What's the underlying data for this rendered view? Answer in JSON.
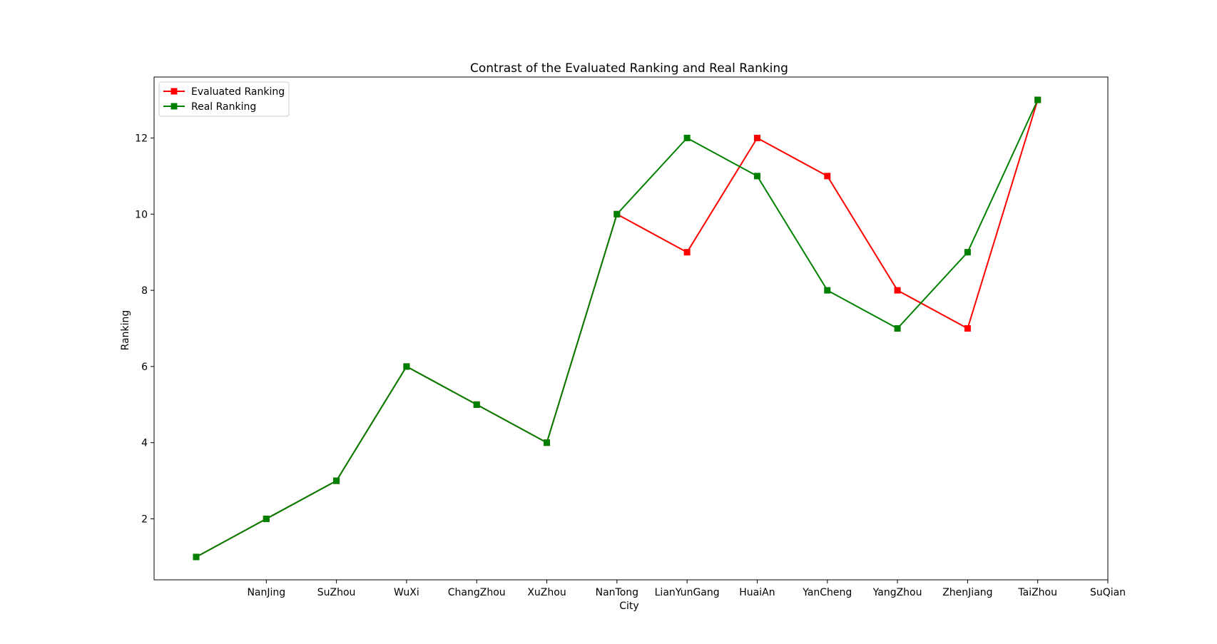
{
  "chart_data": {
    "type": "line",
    "title": "Contrast of the Evaluated Ranking and Real Ranking",
    "xlabel": "City",
    "ylabel": "Ranking",
    "x": [
      0,
      1,
      2,
      3,
      4,
      5,
      6,
      7,
      8,
      9,
      10,
      11,
      12
    ],
    "xticks": [
      1,
      2,
      3,
      4,
      5,
      6,
      7,
      8,
      9,
      10,
      11,
      12,
      13
    ],
    "xtick_labels": [
      "NanJing",
      "SuZhou",
      "WuXi",
      "ChangZhou",
      "XuZhou",
      "NanTong",
      "LianYunGang",
      "HuaiAn",
      "YanCheng",
      "YangZhou",
      "ZhenJiang",
      "TaiZhou",
      "SuQian"
    ],
    "xlim": [
      -0.6,
      13
    ],
    "yticks": [
      2,
      4,
      6,
      8,
      10,
      12
    ],
    "ylim": [
      0.4,
      13.6
    ],
    "grid": false,
    "legend_position": "upper left",
    "series": [
      {
        "name": "Evaluated Ranking",
        "color": "#ff0000",
        "marker": "square",
        "values": [
          1,
          2,
          3,
          6,
          5,
          4,
          10,
          9,
          12,
          11,
          8,
          7,
          13
        ]
      },
      {
        "name": "Real Ranking",
        "color": "#008000",
        "marker": "square",
        "values": [
          1,
          2,
          3,
          6,
          5,
          4,
          10,
          12,
          11,
          8,
          7,
          9,
          13
        ]
      }
    ]
  }
}
